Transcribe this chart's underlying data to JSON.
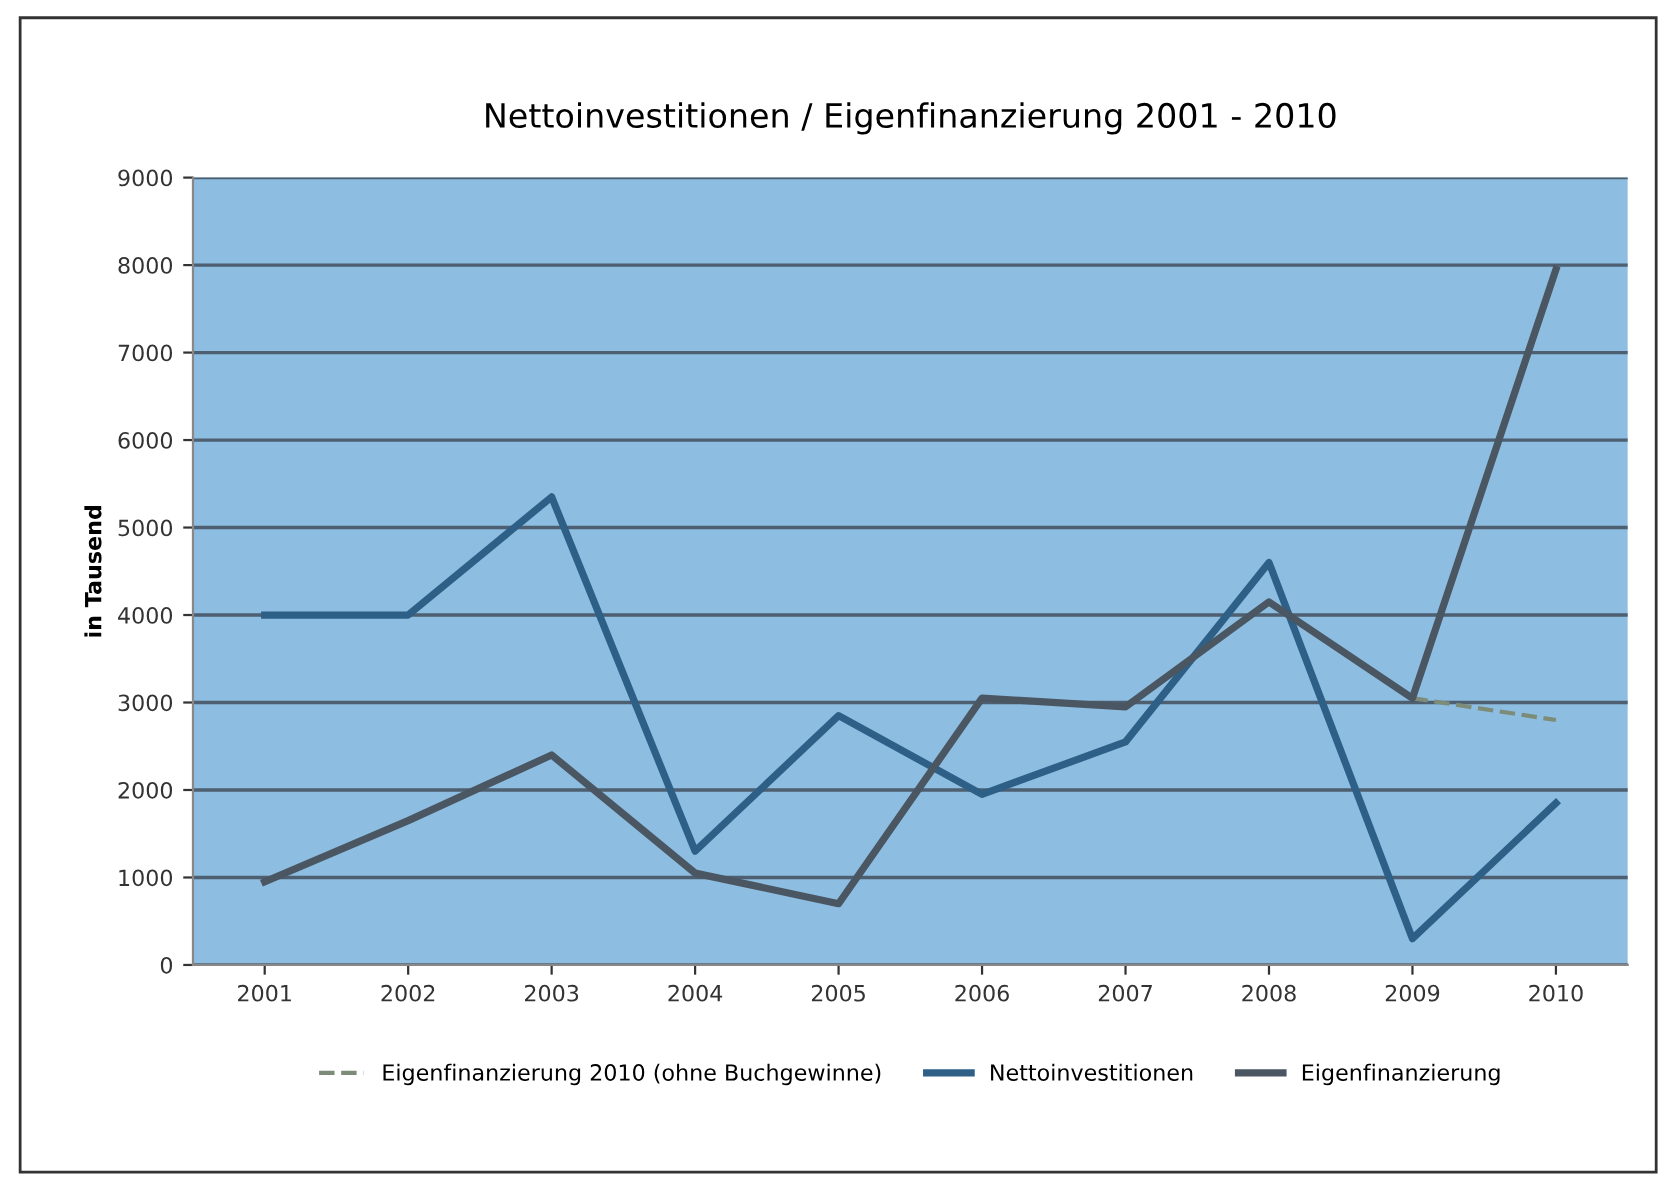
{
  "chart_data": {
    "type": "line",
    "title": "Nettoinvestitionen / Eigenfinanzierung 2001 - 2010",
    "ylabel": "in Tausend",
    "categories": [
      "2001",
      "2002",
      "2003",
      "2004",
      "2005",
      "2006",
      "2007",
      "2008",
      "2009",
      "2010"
    ],
    "series": [
      {
        "name": "Eigenfinanzierung 2010 (ohne Buchgewinne)",
        "color": "#7d8c78",
        "line_style": "dashed",
        "values": [
          null,
          null,
          null,
          null,
          null,
          null,
          null,
          null,
          3050,
          2800
        ]
      },
      {
        "name": "Nettoinvestitionen",
        "color": "#2e5f86",
        "values": [
          4000,
          4000,
          5350,
          1300,
          2850,
          1950,
          2550,
          4600,
          300,
          1850
        ]
      },
      {
        "name": "Eigenfinanzierung",
        "color": "#4a5661",
        "values": [
          950,
          1650,
          2400,
          1050,
          700,
          3050,
          2950,
          4150,
          3050,
          7950
        ]
      }
    ],
    "ylim": [
      0,
      9000
    ],
    "yticks": [
      0,
      1000,
      2000,
      3000,
      4000,
      5000,
      6000,
      7000,
      8000,
      9000
    ],
    "grid": "y",
    "legend": "bottom",
    "marker": "none",
    "line_style": "solid"
  }
}
